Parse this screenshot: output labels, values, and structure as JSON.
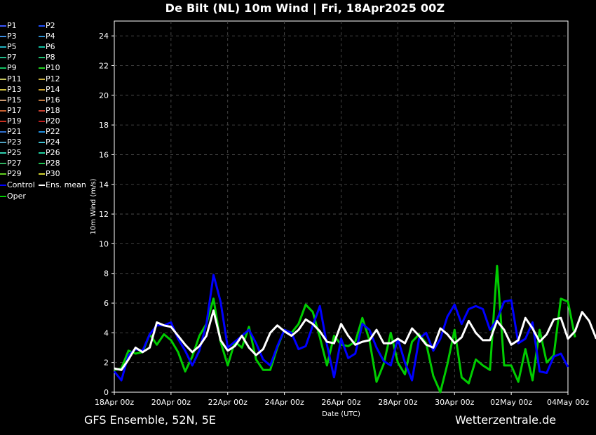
{
  "title": "De Bilt  (NL)  10m Wind | Fri, 18Apr2025 00Z",
  "footer": {
    "model": "GFS Ensemble, 52N, 5E",
    "source": "Wetterzentrale.de"
  },
  "colors": {
    "background": "#000000",
    "grid": "#555555",
    "control": "#0000ff",
    "oper": "#00cc00",
    "ens_mean": "#ffffff"
  },
  "legend": [
    {
      "label": "P1",
      "color": "#3a55ff"
    },
    {
      "label": "P2",
      "color": "#2050ff"
    },
    {
      "label": "P3",
      "color": "#3a8ce0"
    },
    {
      "label": "P4",
      "color": "#2f8fd0"
    },
    {
      "label": "P5",
      "color": "#20b0c0"
    },
    {
      "label": "P6",
      "color": "#10c0a0"
    },
    {
      "label": "P7",
      "color": "#20b888"
    },
    {
      "label": "P8",
      "color": "#20c070"
    },
    {
      "label": "P9",
      "color": "#10c060"
    },
    {
      "label": "P10",
      "color": "#20d020"
    },
    {
      "label": "P11",
      "color": "#c8c860"
    },
    {
      "label": "P12",
      "color": "#c8b040"
    },
    {
      "label": "P13",
      "color": "#d0c040"
    },
    {
      "label": "P14",
      "color": "#c8a030"
    },
    {
      "label": "P15",
      "color": "#c89870"
    },
    {
      "label": "P16",
      "color": "#c07840"
    },
    {
      "label": "P17",
      "color": "#c86030"
    },
    {
      "label": "P18",
      "color": "#c84030"
    },
    {
      "label": "P19",
      "color": "#c83020"
    },
    {
      "label": "P20",
      "color": "#c02020"
    },
    {
      "label": "P21",
      "color": "#3070d0"
    },
    {
      "label": "P22",
      "color": "#2090e0"
    },
    {
      "label": "P23",
      "color": "#50a0c0"
    },
    {
      "label": "P24",
      "color": "#40c0d0"
    },
    {
      "label": "P25",
      "color": "#30d0b0"
    },
    {
      "label": "P26",
      "color": "#20d0a0"
    },
    {
      "label": "P27",
      "color": "#30b060"
    },
    {
      "label": "P28",
      "color": "#20c050"
    },
    {
      "label": "P29",
      "color": "#60d020"
    },
    {
      "label": "P30",
      "color": "#d0d030"
    },
    {
      "label": "Control",
      "color": "#0000ff"
    },
    {
      "label": "Ens. mean",
      "color": "#ffffff"
    },
    {
      "label": "Oper",
      "color": "#00cc00"
    }
  ],
  "chart_data": {
    "type": "line",
    "ylabel": "10m Wind (m/s)",
    "xlabel": "Date (UTC)",
    "ylim": [
      0,
      25
    ],
    "yticks": [
      0,
      2,
      4,
      6,
      8,
      10,
      12,
      14,
      16,
      18,
      20,
      22,
      24
    ],
    "x_tick_labels": [
      "18Apr 00z",
      "20Apr 00z",
      "22Apr 00z",
      "24Apr 00z",
      "26Apr 00z",
      "28Apr 00z",
      "30Apr 00z",
      "02May 00z",
      "04May 00z"
    ],
    "x_step": "6h",
    "x_start": "18Apr 00z",
    "grid": true,
    "series": [
      {
        "name": "Control",
        "values": [
          1.4,
          0.8,
          2.5,
          2.9,
          2.8,
          3.9,
          4.5,
          4.5,
          4.7,
          3.6,
          2.8,
          1.8,
          2.8,
          4.6,
          7.9,
          6.1,
          3.0,
          3.4,
          3.8,
          4.2,
          3.3,
          2.2,
          1.8,
          3.1,
          4.2,
          4.0,
          2.9,
          3.1,
          4.5,
          5.8,
          3.2,
          1.0,
          3.6,
          2.3,
          2.6,
          4.6,
          4.2,
          3.0,
          2.1,
          1.8,
          3.6,
          2.0,
          0.8,
          3.6,
          4.0,
          2.8,
          3.6,
          5.1,
          5.9,
          4.6,
          5.6,
          5.8,
          5.6,
          4.2,
          4.9,
          6.1,
          6.2,
          3.3,
          3.6,
          4.7,
          1.4,
          1.3,
          2.4,
          2.6,
          1.7
        ]
      },
      {
        "name": "Oper",
        "values": [
          1.5,
          1.6,
          2.8,
          2.6,
          2.7,
          3.9,
          3.2,
          3.9,
          3.5,
          2.7,
          1.4,
          2.4,
          3.8,
          4.6,
          6.3,
          3.4,
          1.8,
          3.4,
          3.0,
          4.4,
          2.2,
          1.5,
          1.5,
          3.0,
          4.2,
          4.0,
          4.6,
          5.9,
          5.4,
          3.7,
          1.8,
          3.8,
          3.2,
          3.1,
          3.4,
          5.0,
          3.5,
          0.7,
          1.9,
          4.0,
          2.0,
          1.2,
          3.4,
          3.9,
          3.3,
          1.1,
          0,
          1.9,
          4.2,
          1.0,
          0.6,
          2.2,
          1.8,
          1.5,
          8.5,
          1.8,
          1.8,
          0.7,
          2.9,
          0.8,
          4.2,
          2.0,
          2.5,
          6.3,
          6.1,
          3.7
        ]
      },
      {
        "name": "Ens. mean",
        "values": [
          1.6,
          1.5,
          2.2,
          3.0,
          2.7,
          3.0,
          4.7,
          4.5,
          4.4,
          3.8,
          3.2,
          2.7,
          3.1,
          3.8,
          5.5,
          3.5,
          2.8,
          3.1,
          3.8,
          3.0,
          2.5,
          2.9,
          4.0,
          4.5,
          4.1,
          3.8,
          4.2,
          4.9,
          4.6,
          4.1,
          3.4,
          3.3,
          4.6,
          3.8,
          3.2,
          3.4,
          3.5,
          4.2,
          3.3,
          3.3,
          3.6,
          3.3,
          4.3,
          3.8,
          3.2,
          3.0,
          4.3,
          3.9,
          3.3,
          3.7,
          4.8,
          4.0,
          3.5,
          3.5,
          4.8,
          4.2,
          3.2,
          3.5,
          5.0,
          4.3,
          3.4,
          3.9,
          4.9,
          5.0,
          3.6,
          4.1,
          5.4,
          4.8,
          3.6
        ]
      }
    ]
  }
}
